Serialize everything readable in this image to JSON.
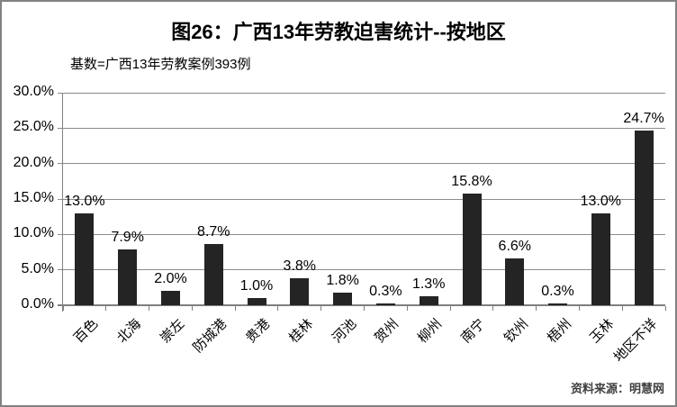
{
  "chart_data": {
    "type": "bar",
    "title": "图26：广西13年劳教迫害统计--按地区",
    "subtitle": "基数=广西13年劳教案例393例",
    "source": "资料来源：明慧网",
    "categories": [
      "百色",
      "北海",
      "崇左",
      "防城港",
      "贵港",
      "桂林",
      "河池",
      "贺州",
      "柳州",
      "南宁",
      "钦州",
      "梧州",
      "玉林",
      "地区不详"
    ],
    "values": [
      13.0,
      7.9,
      2.0,
      8.7,
      1.0,
      3.8,
      1.8,
      0.3,
      1.3,
      15.8,
      6.6,
      0.3,
      13.0,
      24.7
    ],
    "value_labels": [
      "13.0%",
      "7.9%",
      "2.0%",
      "8.7%",
      "1.0%",
      "3.8%",
      "1.8%",
      "0.3%",
      "1.3%",
      "15.8%",
      "6.6%",
      "0.3%",
      "13.0%",
      "24.7%"
    ],
    "xlabel": "",
    "ylabel": "",
    "ylim": [
      0,
      30
    ],
    "yticks": [
      0,
      5,
      10,
      15,
      20,
      25,
      30
    ],
    "ytick_labels": [
      "0.0%",
      "5.0%",
      "10.0%",
      "15.0%",
      "20.0%",
      "25.0%",
      "30.0%"
    ],
    "grid": true,
    "legend": "none",
    "bar_color": "#242424",
    "gridline_color": "#8c8c8c",
    "axis_color": "#7f7f7f"
  }
}
